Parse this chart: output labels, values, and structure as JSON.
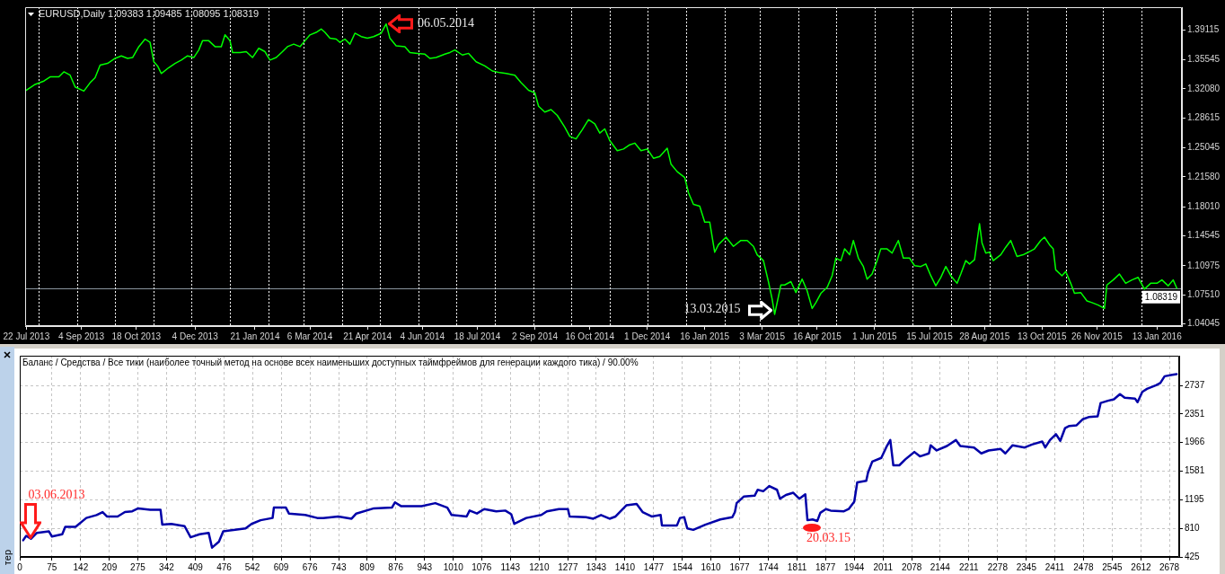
{
  "chart_data": [
    {
      "type": "line",
      "title": "EURUSD,Daily 1.09383 1.09485 1.08095 1.08319",
      "color": "#00ff00",
      "x": [
        "2013-07-22",
        "2013-07-29",
        "2013-08-05",
        "2013-08-10",
        "2013-08-17",
        "2013-08-21",
        "2013-08-26",
        "2013-08-30",
        "2013-09-06",
        "2013-09-11",
        "2013-09-15",
        "2013-09-19",
        "2013-09-25",
        "2013-10-01",
        "2013-10-06",
        "2013-10-11",
        "2013-10-15",
        "2013-10-20",
        "2013-10-25",
        "2013-10-29",
        "2013-11-01",
        "2013-11-04",
        "2013-11-07",
        "2013-11-13",
        "2013-11-18",
        "2013-11-23",
        "2013-11-28",
        "2013-12-03",
        "2013-12-07",
        "2013-12-10",
        "2013-12-15",
        "2013-12-20",
        "2013-12-25",
        "2013-12-28",
        "2014-01-01",
        "2014-01-03",
        "2014-01-09",
        "2014-01-14",
        "2014-01-19",
        "2014-01-24",
        "2014-01-29",
        "2014-02-02",
        "2014-02-07",
        "2014-02-12",
        "2014-02-16",
        "2014-02-21",
        "2014-02-26",
        "2014-03-02",
        "2014-03-06",
        "2014-03-11",
        "2014-03-15",
        "2014-03-18",
        "2014-03-22",
        "2014-03-27",
        "2014-03-30",
        "2014-04-03",
        "2014-04-07",
        "2014-04-11",
        "2014-04-16",
        "2014-04-21",
        "2014-04-26",
        "2014-05-02",
        "2014-05-06",
        "2014-05-09",
        "2014-05-14",
        "2014-05-21",
        "2014-05-25",
        "2014-05-31",
        "2014-06-06",
        "2014-06-10",
        "2014-06-15",
        "2014-06-22",
        "2014-06-26",
        "2014-06-30",
        "2014-07-06",
        "2014-07-11",
        "2014-07-17",
        "2014-07-24",
        "2014-07-30",
        "2014-08-05",
        "2014-08-10",
        "2014-08-17",
        "2014-08-22",
        "2014-08-28",
        "2014-09-02",
        "2014-09-05",
        "2014-09-10",
        "2014-09-15",
        "2014-09-20",
        "2014-09-26",
        "2014-09-30",
        "2014-10-05",
        "2014-10-10",
        "2014-10-15",
        "2014-10-20",
        "2014-10-24",
        "2014-10-28",
        "2014-11-01",
        "2014-11-07",
        "2014-11-12",
        "2014-11-17",
        "2014-11-21",
        "2014-11-26",
        "2014-12-01",
        "2014-12-06",
        "2014-12-11",
        "2014-12-17",
        "2014-12-20",
        "2014-12-25",
        "2014-12-31",
        "2015-01-03",
        "2015-01-07",
        "2015-01-12",
        "2015-01-16",
        "2015-01-20",
        "2015-01-24",
        "2015-01-27",
        "2015-02-02",
        "2015-02-08",
        "2015-02-14",
        "2015-02-19",
        "2015-02-24",
        "2015-02-27",
        "2015-03-04",
        "2015-03-08",
        "2015-03-11",
        "2015-03-13",
        "2015-03-18",
        "2015-03-21",
        "2015-03-26",
        "2015-03-30",
        "2015-04-04",
        "2015-04-08",
        "2015-04-12",
        "2015-04-15",
        "2015-04-19",
        "2015-04-24",
        "2015-04-28",
        "2015-05-01",
        "2015-05-05",
        "2015-05-08",
        "2015-05-12",
        "2015-05-15",
        "2015-05-19",
        "2015-05-23",
        "2015-05-26",
        "2015-05-30",
        "2015-06-03",
        "2015-06-06",
        "2015-06-11",
        "2015-06-15",
        "2015-06-20",
        "2015-06-24",
        "2015-06-29",
        "2015-07-03",
        "2015-07-08",
        "2015-07-12",
        "2015-07-16",
        "2015-07-20",
        "2015-07-24",
        "2015-07-28",
        "2015-08-01",
        "2015-08-06",
        "2015-08-09",
        "2015-08-13",
        "2015-08-16",
        "2015-08-20",
        "2015-08-24",
        "2015-08-26",
        "2015-08-29",
        "2015-09-01",
        "2015-09-04",
        "2015-09-10",
        "2015-09-14",
        "2015-09-18",
        "2015-09-23",
        "2015-09-28",
        "2015-10-02",
        "2015-10-07",
        "2015-10-12",
        "2015-10-15",
        "2015-10-19",
        "2015-10-22",
        "2015-10-24",
        "2015-10-29",
        "2015-11-01",
        "2015-11-05",
        "2015-11-08",
        "2015-11-13",
        "2015-11-18",
        "2015-11-22",
        "2015-11-27",
        "2015-12-02",
        "2015-12-04",
        "2015-12-09",
        "2015-12-14",
        "2015-12-19",
        "2015-12-24",
        "2015-12-29",
        "2016-01-03",
        "2016-01-08",
        "2016-01-13",
        "2016-01-17",
        "2016-01-22",
        "2016-01-26",
        "2016-01-29"
      ],
      "values": [
        1.319,
        1.326,
        1.33,
        1.335,
        1.335,
        1.341,
        1.337,
        1.323,
        1.318,
        1.328,
        1.334,
        1.349,
        1.351,
        1.357,
        1.36,
        1.357,
        1.358,
        1.371,
        1.38,
        1.376,
        1.353,
        1.348,
        1.339,
        1.346,
        1.351,
        1.355,
        1.36,
        1.358,
        1.367,
        1.378,
        1.378,
        1.371,
        1.371,
        1.385,
        1.378,
        1.364,
        1.364,
        1.365,
        1.358,
        1.369,
        1.365,
        1.355,
        1.358,
        1.365,
        1.371,
        1.374,
        1.371,
        1.378,
        1.385,
        1.388,
        1.392,
        1.388,
        1.381,
        1.38,
        1.376,
        1.38,
        1.374,
        1.387,
        1.383,
        1.381,
        1.383,
        1.387,
        1.398,
        1.381,
        1.372,
        1.371,
        1.364,
        1.363,
        1.362,
        1.357,
        1.358,
        1.362,
        1.364,
        1.367,
        1.361,
        1.363,
        1.353,
        1.348,
        1.342,
        1.34,
        1.339,
        1.337,
        1.328,
        1.319,
        1.316,
        1.3,
        1.293,
        1.296,
        1.289,
        1.275,
        1.264,
        1.261,
        1.272,
        1.284,
        1.279,
        1.268,
        1.273,
        1.259,
        1.247,
        1.249,
        1.254,
        1.256,
        1.247,
        1.249,
        1.238,
        1.24,
        1.25,
        1.231,
        1.222,
        1.215,
        1.197,
        1.183,
        1.181,
        1.162,
        1.162,
        1.126,
        1.135,
        1.144,
        1.133,
        1.14,
        1.14,
        1.133,
        1.123,
        1.116,
        1.091,
        1.07,
        1.052,
        1.087,
        1.087,
        1.091,
        1.078,
        1.094,
        1.08,
        1.059,
        1.066,
        1.077,
        1.084,
        1.098,
        1.119,
        1.116,
        1.13,
        1.123,
        1.14,
        1.119,
        1.109,
        1.094,
        1.1,
        1.116,
        1.13,
        1.13,
        1.125,
        1.14,
        1.119,
        1.119,
        1.11,
        1.109,
        1.112,
        1.098,
        1.086,
        1.096,
        1.109,
        1.098,
        1.089,
        1.1,
        1.116,
        1.112,
        1.117,
        1.16,
        1.137,
        1.125,
        1.126,
        1.116,
        1.123,
        1.132,
        1.14,
        1.121,
        1.123,
        1.126,
        1.13,
        1.14,
        1.144,
        1.135,
        1.13,
        1.105,
        1.098,
        1.103,
        1.089,
        1.077,
        1.078,
        1.068,
        1.066,
        1.063,
        1.059,
        1.087,
        1.093,
        1.1,
        1.089,
        1.093,
        1.096,
        1.082,
        1.089,
        1.089,
        1.093,
        1.086,
        1.093,
        1.083
      ],
      "xlim": [
        "2013-07-21",
        "2016-02-02"
      ],
      "ylim": [
        1.038,
        1.418
      ],
      "xticks": [
        {
          "value": "2013-07-22",
          "label": "22 Jul 2013"
        },
        {
          "value": "2013-09-04",
          "label": "4 Sep 2013"
        },
        {
          "value": "2013-10-18",
          "label": "18 Oct 2013"
        },
        {
          "value": "2013-12-04",
          "label": "4 Dec 2013"
        },
        {
          "value": "2014-01-21",
          "label": "21 Jan 2014"
        },
        {
          "value": "2014-03-06",
          "label": "6 Mar 2014"
        },
        {
          "value": "2014-04-21",
          "label": "21 Apr 2014"
        },
        {
          "value": "2014-06-04",
          "label": "4 Jun 2014"
        },
        {
          "value": "2014-07-18",
          "label": "18 Jul 2014"
        },
        {
          "value": "2014-09-02",
          "label": "2 Sep 2014"
        },
        {
          "value": "2014-10-16",
          "label": "16 Oct 2014"
        },
        {
          "value": "2014-12-01",
          "label": "1 Dec 2014"
        },
        {
          "value": "2015-01-16",
          "label": "16 Jan 2015"
        },
        {
          "value": "2015-03-03",
          "label": "3 Mar 2015"
        },
        {
          "value": "2015-04-16",
          "label": "16 Apr 2015"
        },
        {
          "value": "2015-06-01",
          "label": "1 Jun 2015"
        },
        {
          "value": "2015-07-15",
          "label": "15 Jul 2015"
        },
        {
          "value": "2015-08-28",
          "label": "28 Aug 2015"
        },
        {
          "value": "2015-10-13",
          "label": "13 Oct 2015"
        },
        {
          "value": "2015-11-26",
          "label": "26 Nov 2015"
        },
        {
          "value": "2016-01-13",
          "label": "13 Jan 2016"
        }
      ],
      "yticks": [
        1.04045,
        {
          "value": 1.0751,
          "label": "1.07510"
        },
        1.10975,
        1.14545,
        {
          "value": 1.1801,
          "label": "1.18010"
        },
        {
          "value": 1.2158,
          "label": "1.21580"
        },
        1.25045,
        1.28615,
        {
          "value": 1.3208,
          "label": "1.32080"
        },
        1.35545,
        1.39115
      ],
      "ref_lines": [
        {
          "axis": "y",
          "value": 1.08319,
          "label": "1.08319",
          "color": "#8a949e"
        },
        {
          "axis": "x",
          "value": "2013-08-01",
          "color": "#ffffff",
          "line_style": "dotted"
        },
        {
          "axis": "x",
          "value": "2013-09-01",
          "color": "#ffffff",
          "line_style": "dotted"
        },
        {
          "axis": "x",
          "value": "2013-10-01",
          "color": "#ffffff",
          "line_style": "dotted"
        },
        {
          "axis": "x",
          "value": "2013-11-01",
          "color": "#ffffff",
          "line_style": "dotted"
        },
        {
          "axis": "x",
          "value": "2013-12-01",
          "color": "#ffffff",
          "line_style": "dotted"
        },
        {
          "axis": "x",
          "value": "2014-01-01",
          "color": "#ffffff",
          "line_style": "dotted"
        },
        {
          "axis": "x",
          "value": "2014-02-01",
          "color": "#ffffff",
          "line_style": "dotted"
        },
        {
          "axis": "x",
          "value": "2014-03-01",
          "color": "#ffffff",
          "line_style": "dotted"
        },
        {
          "axis": "x",
          "value": "2014-04-01",
          "color": "#ffffff",
          "line_style": "dotted"
        },
        {
          "axis": "x",
          "value": "2014-05-01",
          "color": "#ffffff",
          "line_style": "dotted"
        },
        {
          "axis": "x",
          "value": "2014-06-01",
          "color": "#ffffff",
          "line_style": "dotted"
        },
        {
          "axis": "x",
          "value": "2014-07-01",
          "color": "#ffffff",
          "line_style": "dotted"
        },
        {
          "axis": "x",
          "value": "2014-08-01",
          "color": "#ffffff",
          "line_style": "dotted"
        },
        {
          "axis": "x",
          "value": "2014-09-01",
          "color": "#ffffff",
          "line_style": "dotted"
        },
        {
          "axis": "x",
          "value": "2014-10-01",
          "color": "#ffffff",
          "line_style": "dotted"
        },
        {
          "axis": "x",
          "value": "2014-11-01",
          "color": "#ffffff",
          "line_style": "dotted"
        },
        {
          "axis": "x",
          "value": "2014-12-01",
          "color": "#ffffff",
          "line_style": "dotted"
        },
        {
          "axis": "x",
          "value": "2015-01-01",
          "color": "#ffffff",
          "line_style": "dotted"
        },
        {
          "axis": "x",
          "value": "2015-02-01",
          "color": "#ffffff",
          "line_style": "dotted"
        },
        {
          "axis": "x",
          "value": "2015-03-01",
          "color": "#ffffff",
          "line_style": "dotted"
        },
        {
          "axis": "x",
          "value": "2015-04-01",
          "color": "#ffffff",
          "line_style": "dotted"
        },
        {
          "axis": "x",
          "value": "2015-05-01",
          "color": "#ffffff",
          "line_style": "dotted"
        },
        {
          "axis": "x",
          "value": "2015-06-01",
          "color": "#ffffff",
          "line_style": "dotted"
        },
        {
          "axis": "x",
          "value": "2015-07-01",
          "color": "#ffffff",
          "line_style": "dotted"
        },
        {
          "axis": "x",
          "value": "2015-08-01",
          "color": "#ffffff",
          "line_style": "dotted"
        },
        {
          "axis": "x",
          "value": "2015-09-01",
          "color": "#ffffff",
          "line_style": "dotted"
        },
        {
          "axis": "x",
          "value": "2015-10-01",
          "color": "#ffffff",
          "line_style": "dotted"
        },
        {
          "axis": "x",
          "value": "2015-11-01",
          "color": "#ffffff",
          "line_style": "dotted"
        },
        {
          "axis": "x",
          "value": "2015-12-01",
          "color": "#ffffff",
          "line_style": "dotted"
        },
        {
          "axis": "x",
          "value": "2016-01-01",
          "color": "#ffffff",
          "line_style": "dotted"
        }
      ],
      "annotations": [
        {
          "text": "06.05.2014",
          "x": "2014-05-06",
          "y": 1.398
        },
        {
          "text": "13.03.2015",
          "x": "2015-03-13",
          "y": 1.052
        }
      ]
    },
    {
      "type": "line",
      "title": "Баланс / Средства / Все тики (наиболее точный метод на основе всех наименьших доступных таймфреймов для генерации каждого тика) / 90.00%",
      "color": "#0000a8",
      "x": [
        8,
        15,
        26,
        40,
        68,
        75,
        99,
        106,
        130,
        155,
        179,
        193,
        203,
        228,
        245,
        262,
        276,
        304,
        328,
        332,
        353,
        384,
        398,
        419,
        440,
        448,
        464,
        474,
        502,
        526,
        540,
        561,
        589,
        592,
        620,
        627,
        665,
        693,
        707,
        742,
        773,
        784,
        825,
        867,
        874,
        888,
        919,
        936,
        968,
        996,
        1006,
        1041,
        1048,
        1065,
        1082,
        1110,
        1131,
        1145,
        1152,
        1180,
        1215,
        1228,
        1256,
        1277,
        1281,
        1319,
        1336,
        1354,
        1374,
        1388,
        1413,
        1437,
        1451,
        1472,
        1493,
        1496,
        1531,
        1538,
        1548,
        1555,
        1569,
        1597,
        1632,
        1660,
        1666,
        1670,
        1687,
        1712,
        1719,
        1732,
        1746,
        1764,
        1771,
        1785,
        1802,
        1816,
        1830,
        1835,
        1847,
        1858,
        1865,
        1878,
        1889,
        1920,
        1931,
        1944,
        1951,
        1972,
        1976,
        1986,
        2007,
        2020,
        2028,
        2035,
        2049,
        2063,
        2084,
        2097,
        2118,
        2122,
        2136,
        2160,
        2181,
        2191,
        2223,
        2240,
        2257,
        2285,
        2296,
        2313,
        2341,
        2358,
        2382,
        2389,
        2400,
        2414,
        2424,
        2435,
        2445,
        2462,
        2476,
        2490,
        2511,
        2518,
        2535,
        2549,
        2563,
        2574,
        2598,
        2604,
        2615,
        2626,
        2647,
        2657,
        2667,
        2685,
        2695
      ],
      "values": [
        650,
        710,
        670,
        750,
        770,
        700,
        730,
        830,
        830,
        950,
        990,
        1030,
        970,
        970,
        1030,
        1040,
        1080,
        1060,
        1060,
        860,
        870,
        840,
        690,
        730,
        750,
        550,
        630,
        770,
        790,
        810,
        870,
        920,
        950,
        1090,
        1090,
        1010,
        990,
        950,
        950,
        970,
        940,
        1010,
        1080,
        1090,
        1160,
        1110,
        1110,
        1110,
        1150,
        1090,
        990,
        970,
        1050,
        1010,
        1070,
        1040,
        1050,
        1000,
        870,
        950,
        990,
        1040,
        1070,
        1070,
        970,
        960,
        940,
        990,
        940,
        970,
        1120,
        1140,
        1030,
        970,
        990,
        850,
        850,
        950,
        960,
        810,
        790,
        860,
        930,
        960,
        1030,
        1150,
        1240,
        1250,
        1330,
        1310,
        1380,
        1330,
        1210,
        1260,
        1290,
        1210,
        1270,
        920,
        930,
        910,
        1020,
        1070,
        1050,
        1040,
        1070,
        1170,
        1430,
        1450,
        1560,
        1710,
        1760,
        1920,
        2000,
        1660,
        1660,
        1740,
        1840,
        1780,
        1820,
        1930,
        1860,
        1920,
        2000,
        1920,
        1900,
        1820,
        1860,
        1880,
        1820,
        1930,
        1900,
        1940,
        1980,
        1900,
        2000,
        2080,
        1990,
        2160,
        2190,
        2200,
        2280,
        2310,
        2320,
        2500,
        2530,
        2550,
        2620,
        2570,
        2560,
        2510,
        2650,
        2690,
        2740,
        2770,
        2860,
        2880,
        2890
      ],
      "xlim": [
        0,
        2701
      ],
      "ylim": [
        425,
        3137
      ],
      "xticks": [
        0,
        75,
        142,
        209,
        275,
        342,
        409,
        476,
        542,
        609,
        676,
        743,
        809,
        876,
        943,
        1010,
        1076,
        1143,
        1210,
        1277,
        1343,
        1410,
        1477,
        1544,
        1610,
        1677,
        1744,
        1811,
        1877,
        1944,
        2011,
        2078,
        2144,
        2211,
        2278,
        2345,
        2411,
        2478,
        2545,
        2612,
        2678
      ],
      "yticks": [
        425,
        810,
        1195,
        1581,
        1966,
        2351,
        2737
      ],
      "grid": true,
      "annotations": [
        {
          "text": "03.06.2013",
          "x": 26,
          "y": 670
        },
        {
          "text": "20.03.15",
          "x": 1858,
          "y": 910
        },
        "тер"
      ]
    }
  ]
}
